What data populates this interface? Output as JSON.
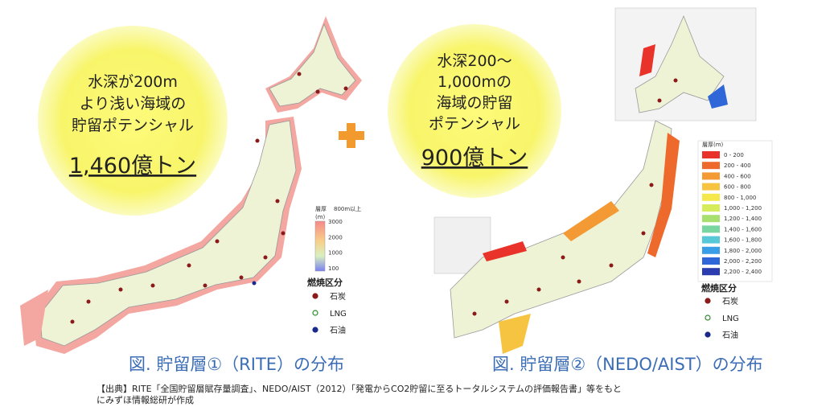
{
  "left_panel": {
    "circle_lines": [
      "水深が200m",
      "より浅い海域の",
      "貯留ポテンシャル"
    ],
    "amount": "1,460億トン",
    "caption": "図. 貯留層①（RITE）の分布",
    "legend": {
      "title": "層厚",
      "subtitle": "800m以上",
      "unit": "(m)",
      "scale_labels": [
        "3000",
        "2000",
        "1000",
        "100"
      ],
      "fuel_title": "燃焼区分",
      "fuel_items": [
        "石炭",
        "LNG",
        "石油"
      ]
    }
  },
  "right_panel": {
    "circle_lines": [
      "水深200～",
      "1,000mの",
      "海域の貯留",
      "ポテンシャル"
    ],
    "amount": "900億トン",
    "caption": "図. 貯留層②（NEDO/AIST）の分布",
    "legend": {
      "title": "層厚(m)",
      "ranges": [
        {
          "label": "0 - 200",
          "color": "#e8322a"
        },
        {
          "label": "200 - 400",
          "color": "#ee6a2c"
        },
        {
          "label": "400 - 600",
          "color": "#f39a35"
        },
        {
          "label": "600 - 800",
          "color": "#f6c440"
        },
        {
          "label": "800 - 1,000",
          "color": "#f4e84a"
        },
        {
          "label": "1,000 - 1,200",
          "color": "#d6ec5a"
        },
        {
          "label": "1,200 - 1,400",
          "color": "#a8e070"
        },
        {
          "label": "1,400 - 1,600",
          "color": "#7ad6a0"
        },
        {
          "label": "1,600 - 1,800",
          "color": "#56c8d8"
        },
        {
          "label": "1,800 - 2,000",
          "color": "#3a9ee6"
        },
        {
          "label": "2,000 - 2,200",
          "color": "#2f66d8"
        },
        {
          "label": "2,200 - 2,400",
          "color": "#2a3cb0"
        }
      ],
      "fuel_title": "燃焼区分",
      "fuel_items": [
        "石炭",
        "LNG",
        "石油"
      ]
    }
  },
  "source": [
    "【出典】RITE「全国貯留層賦存量調査」、NEDO/AIST（2012）「発電からCO2貯留に至るトータルシステムの評価報告書」等をもと",
    "にみずほ情報総研が作成"
  ]
}
